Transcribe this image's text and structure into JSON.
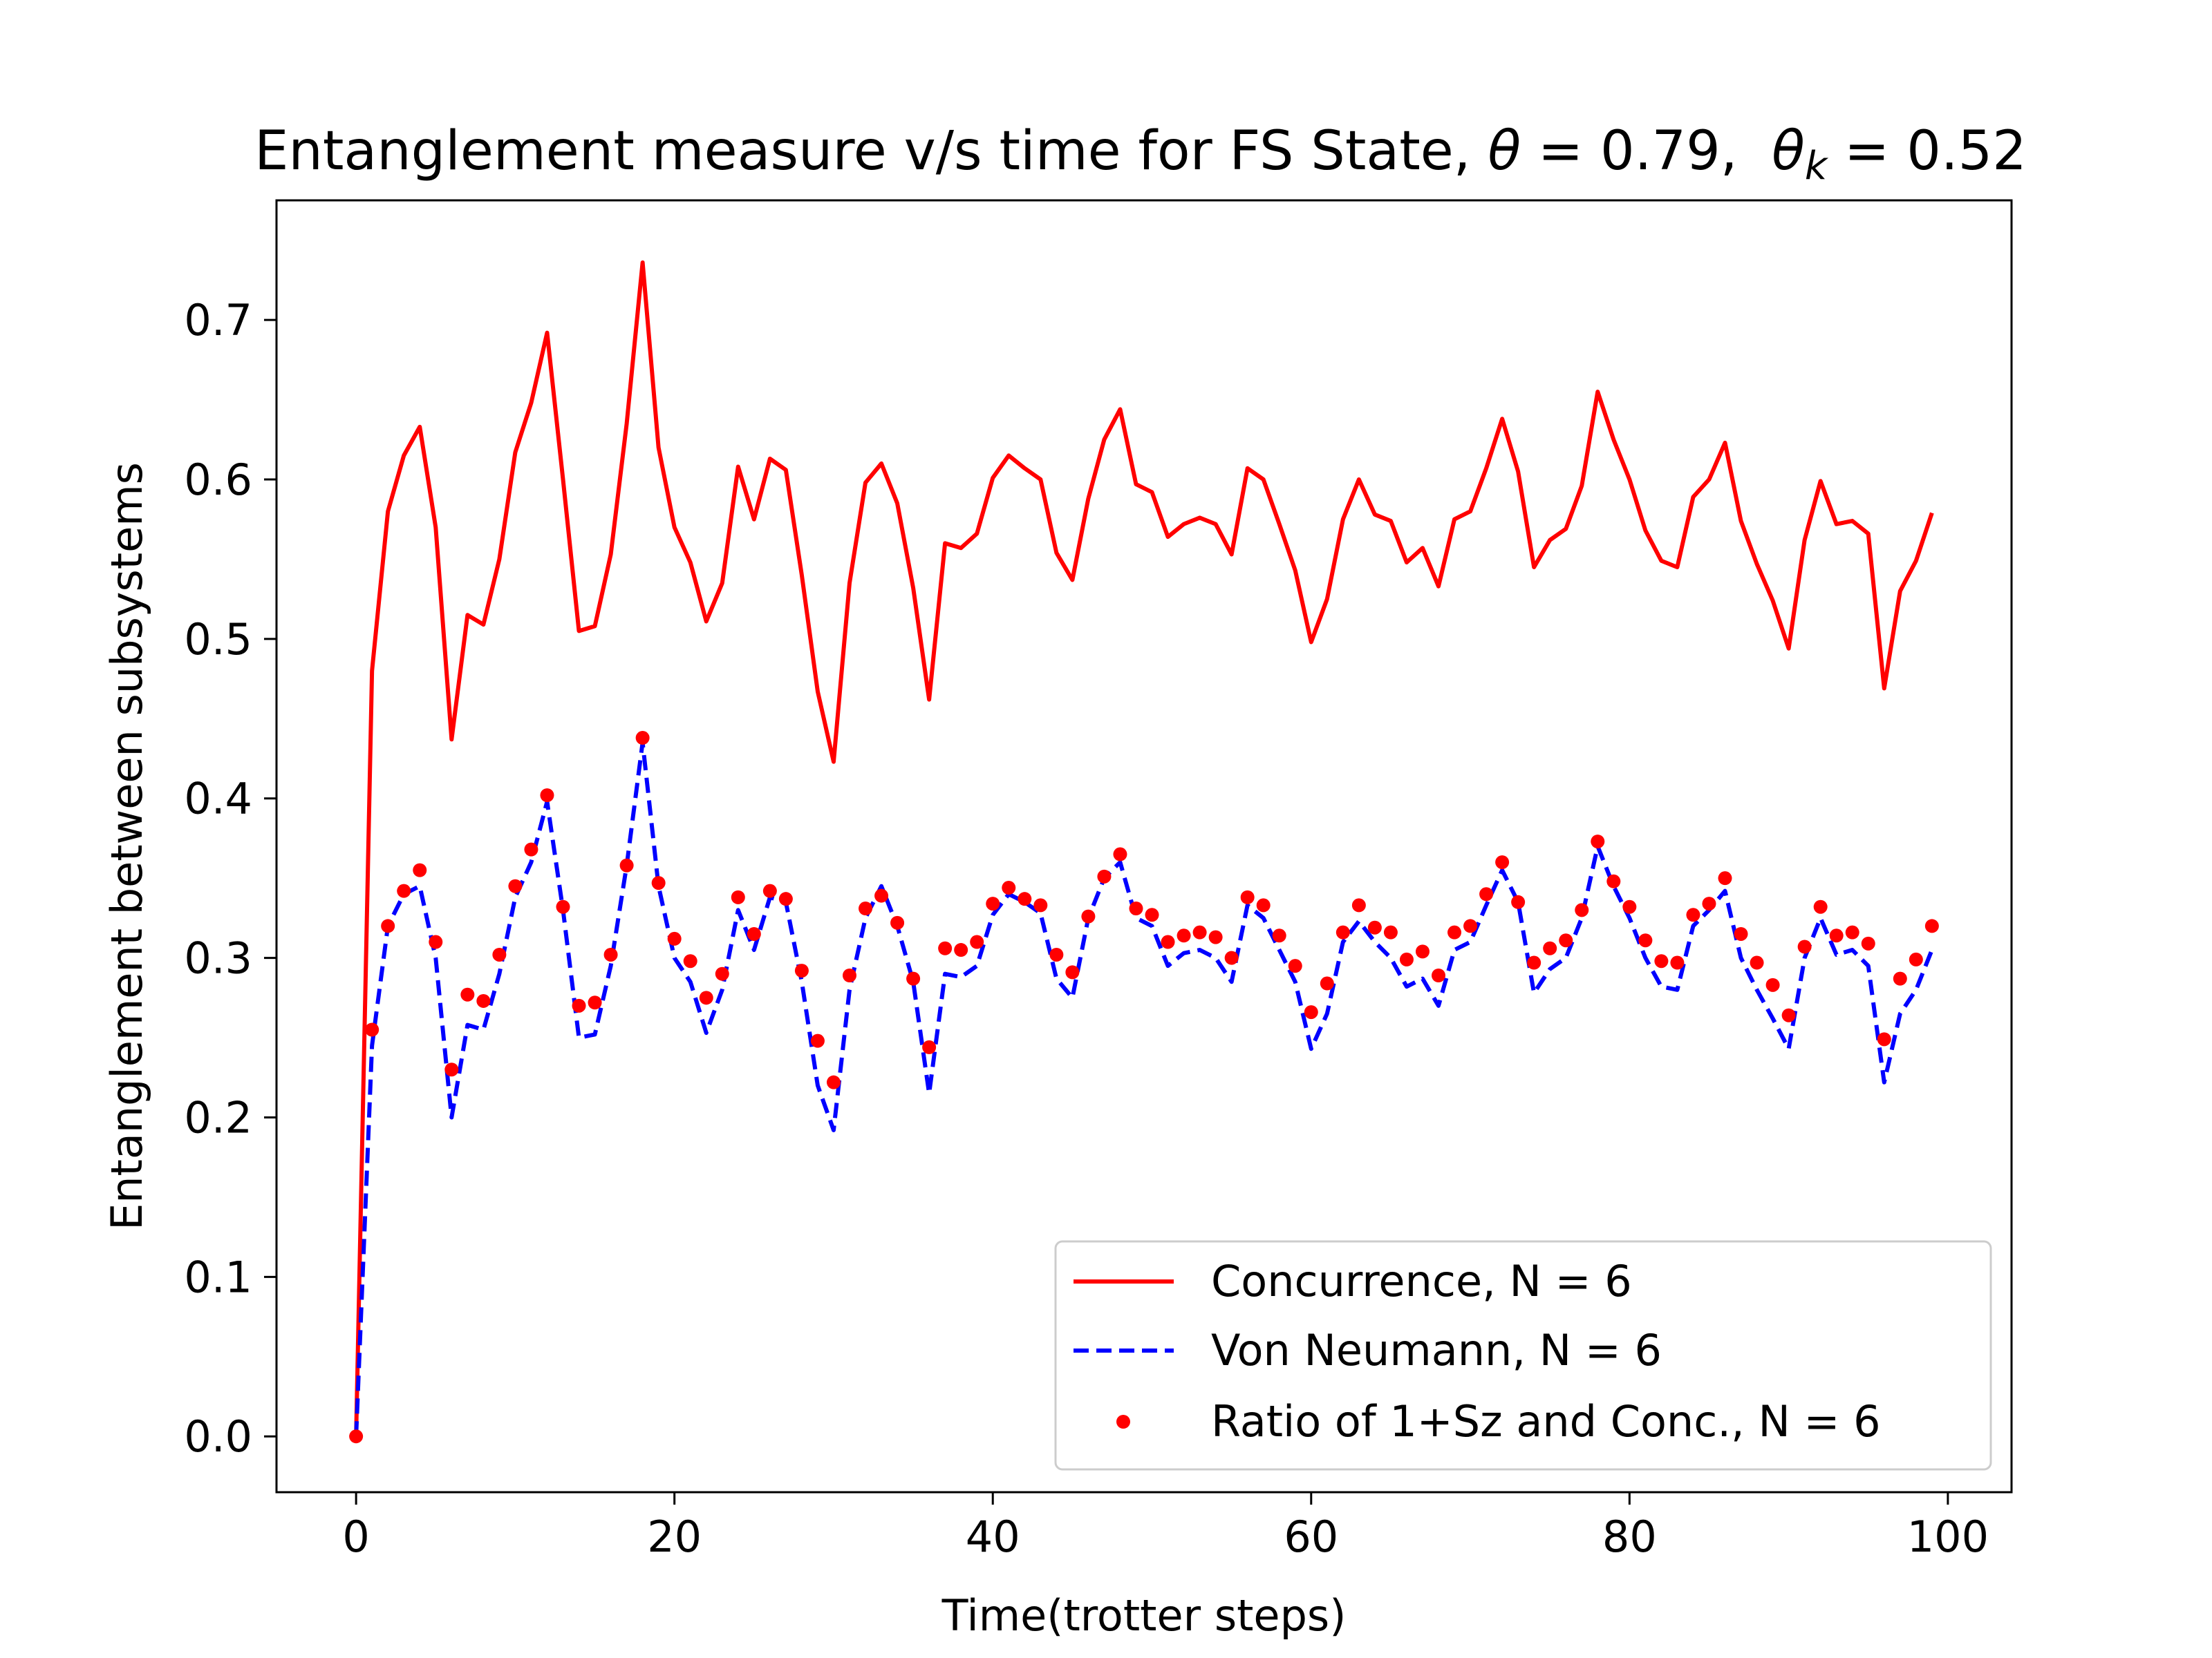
{
  "chart_data": {
    "type": "line",
    "title": "Entanglement measure v/s time for FS State, θ = 0.79,  θk = 0.52",
    "title_parts": {
      "prefix": "Entanglement measure v/s time for FS State, ",
      "theta_symbol": "θ",
      "theta_eq": " = 0.79,  ",
      "thetak_symbol": "θ",
      "thetak_sub": "k",
      "thetak_eq": " = 0.52"
    },
    "xlabel": "Time(trotter steps)",
    "ylabel": "Entanglement between subsystems",
    "xlim": [
      -5,
      104
    ],
    "ylim": [
      -0.035,
      0.775
    ],
    "xticks": [
      0,
      20,
      40,
      60,
      80,
      100
    ],
    "yticks": [
      0.0,
      0.1,
      0.2,
      0.3,
      0.4,
      0.5,
      0.6,
      0.7
    ],
    "xtick_labels": [
      "0",
      "20",
      "40",
      "60",
      "80",
      "100"
    ],
    "ytick_labels": [
      "0.0",
      "0.1",
      "0.2",
      "0.3",
      "0.4",
      "0.5",
      "0.6",
      "0.7"
    ],
    "grid": false,
    "legend_position": "lower-right",
    "x": [
      0,
      1,
      2,
      3,
      4,
      5,
      6,
      7,
      8,
      9,
      10,
      11,
      12,
      13,
      14,
      15,
      16,
      17,
      18,
      19,
      20,
      21,
      22,
      23,
      24,
      25,
      26,
      27,
      28,
      29,
      30,
      31,
      32,
      33,
      34,
      35,
      36,
      37,
      38,
      39,
      40,
      41,
      42,
      43,
      44,
      45,
      46,
      47,
      48,
      49,
      50,
      51,
      52,
      53,
      54,
      55,
      56,
      57,
      58,
      59,
      60,
      61,
      62,
      63,
      64,
      65,
      66,
      67,
      68,
      69,
      70,
      71,
      72,
      73,
      74,
      75,
      76,
      77,
      78,
      79,
      80,
      81,
      82,
      83,
      84,
      85,
      86,
      87,
      88,
      89,
      90,
      91,
      92,
      93,
      94,
      95,
      96,
      97,
      98,
      99
    ],
    "series": [
      {
        "name": "Concurrence, N = 6",
        "style": "solid",
        "color": "#ff0000",
        "values": [
          0.0,
          0.48,
          0.58,
          0.615,
          0.633,
          0.57,
          0.437,
          0.515,
          0.509,
          0.55,
          0.617,
          0.648,
          0.692,
          0.6,
          0.505,
          0.508,
          0.553,
          0.635,
          0.736,
          0.62,
          0.57,
          0.548,
          0.511,
          0.535,
          0.608,
          0.575,
          0.613,
          0.606,
          0.54,
          0.467,
          0.423,
          0.535,
          0.598,
          0.61,
          0.585,
          0.532,
          0.462,
          0.56,
          0.557,
          0.566,
          0.601,
          0.615,
          0.607,
          0.6,
          0.554,
          0.537,
          0.588,
          0.625,
          0.644,
          0.597,
          0.592,
          0.564,
          0.572,
          0.576,
          0.572,
          0.553,
          0.607,
          0.6,
          0.572,
          0.543,
          0.498,
          0.525,
          0.575,
          0.6,
          0.578,
          0.574,
          0.548,
          0.557,
          0.533,
          0.575,
          0.58,
          0.607,
          0.638,
          0.605,
          0.545,
          0.562,
          0.569,
          0.596,
          0.655,
          0.625,
          0.6,
          0.568,
          0.549,
          0.545,
          0.589,
          0.6,
          0.623,
          0.574,
          0.547,
          0.524,
          0.494,
          0.562,
          0.599,
          0.572,
          0.574,
          0.566,
          0.469,
          0.53,
          0.549,
          0.579
        ]
      },
      {
        "name": "Von Neumann, N = 6",
        "style": "dashed",
        "color": "#0000ff",
        "values": [
          0.0,
          0.245,
          0.32,
          0.34,
          0.345,
          0.3,
          0.2,
          0.258,
          0.255,
          0.29,
          0.338,
          0.36,
          0.398,
          0.33,
          0.25,
          0.252,
          0.295,
          0.358,
          0.435,
          0.345,
          0.3,
          0.285,
          0.253,
          0.28,
          0.33,
          0.305,
          0.338,
          0.335,
          0.285,
          0.22,
          0.192,
          0.28,
          0.325,
          0.345,
          0.32,
          0.285,
          0.215,
          0.29,
          0.288,
          0.295,
          0.327,
          0.34,
          0.335,
          0.328,
          0.287,
          0.275,
          0.325,
          0.35,
          0.36,
          0.325,
          0.32,
          0.295,
          0.303,
          0.305,
          0.3,
          0.285,
          0.333,
          0.325,
          0.305,
          0.285,
          0.243,
          0.265,
          0.31,
          0.323,
          0.31,
          0.3,
          0.282,
          0.287,
          0.27,
          0.305,
          0.31,
          0.333,
          0.355,
          0.335,
          0.278,
          0.293,
          0.3,
          0.325,
          0.37,
          0.345,
          0.325,
          0.3,
          0.282,
          0.28,
          0.32,
          0.33,
          0.342,
          0.3,
          0.28,
          0.262,
          0.243,
          0.3,
          0.325,
          0.302,
          0.305,
          0.295,
          0.222,
          0.265,
          0.28,
          0.305
        ]
      },
      {
        "name": "Ratio of 1+Sz and Conc., N = 6",
        "style": "dots",
        "color": "#ff0000",
        "values": [
          0.0,
          0.255,
          0.32,
          0.342,
          0.355,
          0.31,
          0.23,
          0.277,
          0.273,
          0.302,
          0.345,
          0.368,
          0.402,
          0.332,
          0.27,
          0.272,
          0.302,
          0.358,
          0.438,
          0.347,
          0.312,
          0.298,
          0.275,
          0.29,
          0.338,
          0.315,
          0.342,
          0.337,
          0.292,
          0.248,
          0.222,
          0.289,
          0.331,
          0.339,
          0.322,
          0.287,
          0.244,
          0.306,
          0.305,
          0.31,
          0.334,
          0.344,
          0.337,
          0.333,
          0.302,
          0.291,
          0.326,
          0.351,
          0.365,
          0.331,
          0.327,
          0.31,
          0.314,
          0.316,
          0.313,
          0.3,
          0.338,
          0.333,
          0.314,
          0.295,
          0.266,
          0.284,
          0.316,
          0.333,
          0.319,
          0.316,
          0.299,
          0.304,
          0.289,
          0.316,
          0.32,
          0.34,
          0.36,
          0.335,
          0.297,
          0.306,
          0.311,
          0.33,
          0.373,
          0.348,
          0.332,
          0.311,
          0.298,
          0.297,
          0.327,
          0.334,
          0.35,
          0.315,
          0.297,
          0.283,
          0.264,
          0.307,
          0.332,
          0.314,
          0.316,
          0.309,
          0.249,
          0.287,
          0.299,
          0.32
        ]
      }
    ]
  }
}
